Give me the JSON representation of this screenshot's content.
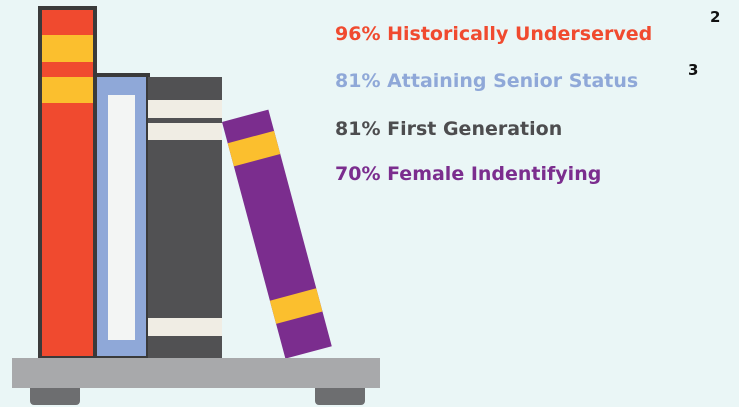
{
  "stats": [
    {
      "text": "96% Historically Underserved",
      "note": "2"
    },
    {
      "text": "81% Attaining Senior Status",
      "note": "3"
    },
    {
      "text": "81% First Generation"
    },
    {
      "text": "70% Female Indentifying"
    }
  ]
}
